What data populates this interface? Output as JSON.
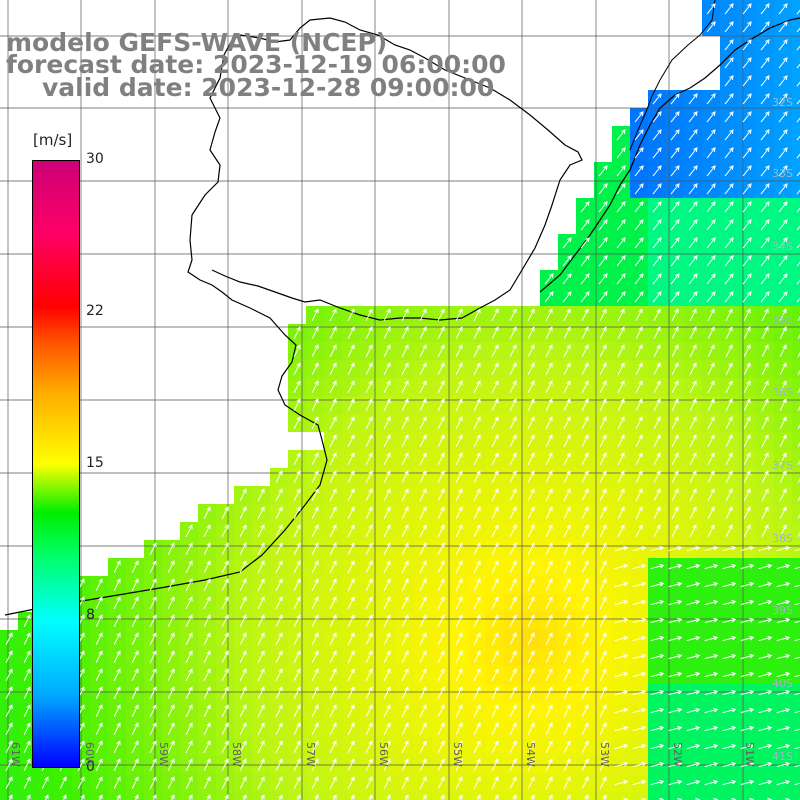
{
  "titles": {
    "line1": "modelo GEFS-WAVE (NCEP)",
    "line2": "forecast date: 2023-12-19 06:00:00",
    "line3": "valid date: 2023-12-28 09:00:00"
  },
  "colorbar": {
    "unit": "[m/s]",
    "ticks": [
      "30",
      "22",
      "15",
      "8",
      "0"
    ],
    "colors": [
      "#0000ff",
      "#00ffff",
      "#00ee00",
      "#ffff00",
      "#ff0000",
      "#cc0077"
    ]
  },
  "lon_labels": [
    "61W",
    "60W",
    "59W",
    "58W",
    "57W",
    "56W",
    "55W",
    "54W",
    "53W",
    "52W",
    "51W"
  ],
  "lat_labels": [
    "32S",
    "33S",
    "34S",
    "35S",
    "36S",
    "37S",
    "38S",
    "39S",
    "40S",
    "41S"
  ],
  "colors": {
    "land": "#ffffff",
    "coastline": "#000000",
    "grid": "#555555",
    "arrows": "#ffffff"
  }
}
